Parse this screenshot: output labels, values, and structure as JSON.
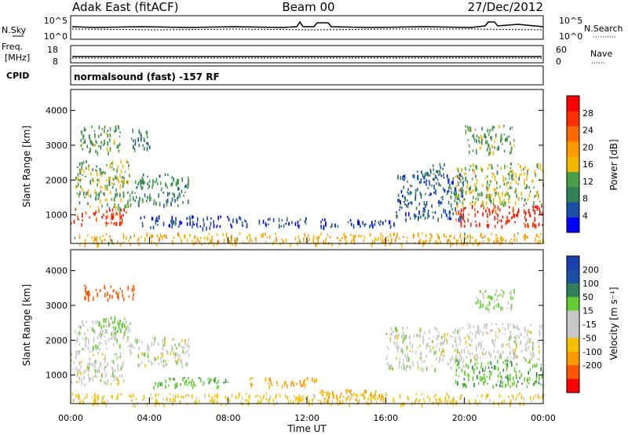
{
  "header": {
    "station": "Adak East (fitACF)",
    "beam": "Beam 00",
    "date": "27/Dec/2012"
  },
  "strips": {
    "nsky": {
      "label": "N.Sky",
      "ticks": [
        "10^5",
        "10^0"
      ]
    },
    "nsearch": {
      "label": "N.Search",
      "ticks": [
        "10^5",
        "10^0"
      ]
    },
    "freq": {
      "label_top": "Freq.",
      "label_bottom": "[MHz]",
      "ticks": [
        "18",
        "8"
      ]
    },
    "nave": {
      "label": "Nave",
      "ticks": [
        "60",
        "0"
      ]
    },
    "cpid": {
      "label": "CPID",
      "text": "normalsound (fast) -157 RF"
    }
  },
  "colors": {
    "power": [
      "#0000ff",
      "#1c4fa6",
      "#2f7f57",
      "#4c9e47",
      "#f5b800",
      "#ff9a00",
      "#ff6a00",
      "#ff3000",
      "#ff0000"
    ],
    "velocity": [
      "#ff0000",
      "#ff5500",
      "#ff9a00",
      "#f5c000",
      "#c8c8c8",
      "#c8c8c8",
      "#66cc33",
      "#2f7f57",
      "#1c4fa6",
      "#1c3fb0"
    ]
  },
  "chart_data": [
    {
      "type": "heatmap",
      "name": "power",
      "ylabel": "Slant Range [km]",
      "ylim": [
        180,
        4600
      ],
      "yticks": [
        "1000",
        "2000",
        "3000",
        "4000"
      ],
      "ytick_values": [
        1000,
        2000,
        3000,
        4000
      ],
      "xlim": [
        0,
        24
      ],
      "colorbar_label": "Power [dB]",
      "colorbar_ticks": [
        "4",
        "8",
        "12",
        "16",
        "20",
        "24",
        "28"
      ],
      "colorbar_range": [
        0,
        32
      ],
      "regions": [
        {
          "t": [
            0.0,
            2.8
          ],
          "r": [
            750,
            1200
          ],
          "v": 27
        },
        {
          "t": [
            0.3,
            3.0
          ],
          "r": [
            1200,
            1700
          ],
          "v": 12
        },
        {
          "t": [
            0.2,
            3.0
          ],
          "r": [
            1700,
            2600
          ],
          "v": 13
        },
        {
          "t": [
            0.5,
            2.5
          ],
          "r": [
            2800,
            3600
          ],
          "v": 11
        },
        {
          "t": [
            3.0,
            6.0
          ],
          "r": [
            1300,
            2200
          ],
          "v": 10
        },
        {
          "t": [
            3.0,
            4.0
          ],
          "r": [
            2900,
            3500
          ],
          "v": 8
        },
        {
          "t": [
            3.5,
            9.0
          ],
          "r": [
            650,
            1000
          ],
          "v": 4
        },
        {
          "t": [
            9.5,
            12.0
          ],
          "r": [
            700,
            950
          ],
          "v": 5
        },
        {
          "t": [
            12.5,
            16.5
          ],
          "r": [
            650,
            900
          ],
          "v": 5
        },
        {
          "t": [
            16.5,
            20.0
          ],
          "r": [
            900,
            2200
          ],
          "v": 6
        },
        {
          "t": [
            17.5,
            19.0
          ],
          "r": [
            2100,
            2500
          ],
          "v": 9
        },
        {
          "t": [
            19.5,
            24.0
          ],
          "r": [
            700,
            1300
          ],
          "v": 28
        },
        {
          "t": [
            19.5,
            24.0
          ],
          "r": [
            1300,
            2500
          ],
          "v": 14
        },
        {
          "t": [
            20.0,
            22.5
          ],
          "r": [
            2800,
            3600
          ],
          "v": 12
        },
        {
          "t": [
            0.0,
            24.0
          ],
          "r": [
            180,
            500
          ],
          "v": 18
        }
      ]
    },
    {
      "type": "heatmap",
      "name": "velocity",
      "ylabel": "Slant Range [km]",
      "ylim": [
        180,
        4600
      ],
      "yticks": [
        "1000",
        "2000",
        "3000",
        "4000"
      ],
      "ytick_values": [
        1000,
        2000,
        3000,
        4000
      ],
      "xlim": [
        0,
        24
      ],
      "xlabel": "Time UT",
      "xticks": [
        "00:00",
        "04:00",
        "08:00",
        "12:00",
        "16:00",
        "20:00",
        "00:00"
      ],
      "xtick_values": [
        0,
        4,
        8,
        12,
        16,
        20,
        24
      ],
      "colorbar_label": "Velocity [m s⁻¹]",
      "colorbar_ticks": [
        "200",
        "100",
        "50",
        "15",
        "-15",
        "-50",
        "-100",
        "-200"
      ],
      "regions": [
        {
          "t": [
            0.0,
            2.8
          ],
          "r": [
            750,
            1700
          ],
          "v": 0
        },
        {
          "t": [
            0.2,
            3.0
          ],
          "r": [
            1700,
            2600
          ],
          "v": 5
        },
        {
          "t": [
            0.5,
            3.2
          ],
          "r": [
            3200,
            3600
          ],
          "v": -120
        },
        {
          "t": [
            1.5,
            3.0
          ],
          "r": [
            2200,
            2700
          ],
          "v": 30
        },
        {
          "t": [
            3.0,
            6.0
          ],
          "r": [
            1300,
            2100
          ],
          "v": 0
        },
        {
          "t": [
            4.0,
            8.0
          ],
          "r": [
            650,
            950
          ],
          "v": 40
        },
        {
          "t": [
            9.0,
            12.5
          ],
          "r": [
            700,
            950
          ],
          "v": -60
        },
        {
          "t": [
            12.5,
            16.0
          ],
          "r": [
            250,
            600
          ],
          "v": -60
        },
        {
          "t": [
            16.0,
            20.0
          ],
          "r": [
            1200,
            2400
          ],
          "v": 0
        },
        {
          "t": [
            19.5,
            24.0
          ],
          "r": [
            700,
            1500
          ],
          "v": 40
        },
        {
          "t": [
            20.0,
            24.0
          ],
          "r": [
            1500,
            2500
          ],
          "v": 0
        },
        {
          "t": [
            20.5,
            22.5
          ],
          "r": [
            2900,
            3500
          ],
          "v": 20
        },
        {
          "t": [
            0.0,
            24.0
          ],
          "r": [
            180,
            500
          ],
          "v": -30
        }
      ]
    }
  ]
}
